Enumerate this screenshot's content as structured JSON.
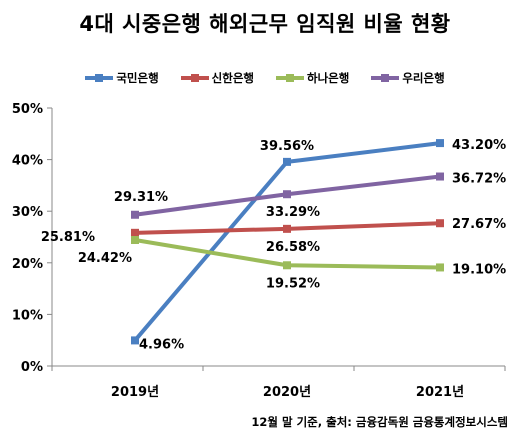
{
  "chart_data": {
    "type": "line",
    "title": "4대 시중은행 해외근무 임직원 비율 현황",
    "categories": [
      "2019년",
      "2020년",
      "2021년"
    ],
    "yticks": [
      "0%",
      "10%",
      "20%",
      "30%",
      "40%",
      "50%"
    ],
    "ylim": [
      0,
      50
    ],
    "legend_position": "top",
    "series": [
      {
        "name": "국민은행",
        "color": "#4a7fc1",
        "values": [
          4.96,
          39.56,
          43.2
        ],
        "labels": [
          "4.96%",
          "39.56%",
          "43.20%"
        ]
      },
      {
        "name": "신한은행",
        "color": "#c0504d",
        "values": [
          25.81,
          26.58,
          27.67
        ],
        "labels": [
          "25.81%",
          "26.58%",
          "27.67%"
        ]
      },
      {
        "name": "하나은행",
        "color": "#9bbb59",
        "values": [
          24.42,
          19.52,
          19.1
        ],
        "labels": [
          "24.42%",
          "19.52%",
          "19.10%"
        ]
      },
      {
        "name": "우리은행",
        "color": "#8064a2",
        "values": [
          29.31,
          33.29,
          36.72
        ],
        "labels": [
          "29.31%",
          "33.29%",
          "36.72%"
        ]
      }
    ],
    "source": "12월 말 기준, 출처: 금융감독원 금융통계정보시스템"
  }
}
